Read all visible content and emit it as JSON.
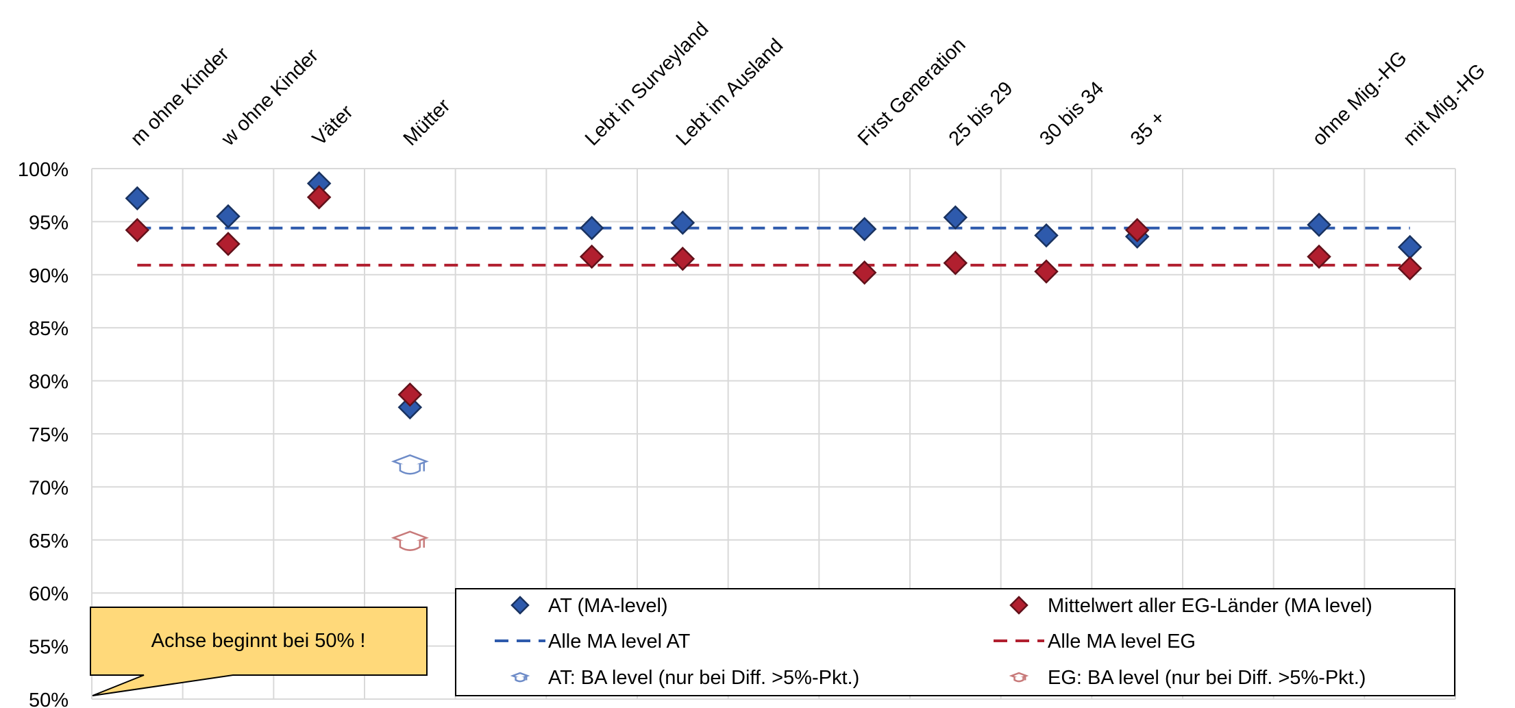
{
  "chart_data": {
    "type": "scatter",
    "categories": [
      "m ohne Kinder",
      "w ohne Kinder",
      "Väter",
      "Mütter",
      "",
      "Lebt in Surveyland",
      "Lebt im Ausland",
      "",
      "First Generation",
      "25 bis 29",
      "30 bis 34",
      "35 +",
      "",
      "ohne Mig.-HG",
      "mit Mig.-HG"
    ],
    "y_ticks": [
      "100%",
      "95%",
      "90%",
      "85%",
      "80%",
      "75%",
      "70%",
      "65%",
      "60%",
      "55%",
      "50%"
    ],
    "ylim": [
      0.5,
      1.0
    ],
    "grid": true,
    "series": [
      {
        "name": "AT (MA-level)",
        "kind": "marker",
        "color": "#2E5AAC",
        "values": [
          0.972,
          0.955,
          0.986,
          0.775,
          null,
          0.944,
          0.949,
          null,
          0.943,
          0.954,
          0.937,
          0.936,
          null,
          0.947,
          0.926
        ]
      },
      {
        "name": "Mittelwert aller EG-Länder (MA level)",
        "kind": "marker",
        "color": "#B11F2F",
        "values": [
          0.942,
          0.929,
          0.973,
          0.787,
          null,
          0.917,
          0.915,
          null,
          0.902,
          0.911,
          0.903,
          0.942,
          null,
          0.917,
          0.906
        ]
      },
      {
        "name": "Alle MA level AT",
        "kind": "reference-line",
        "color": "#2E5AAC",
        "value": 0.944
      },
      {
        "name": "Alle MA level EG",
        "kind": "reference-line",
        "color": "#B11F2F",
        "value": 0.909
      },
      {
        "name": "AT: BA level (nur bei Diff. >5%-Pkt.)",
        "kind": "graduation-cap",
        "color": "#6E8CC8",
        "icon": "graduation-cap-icon",
        "values": [
          null,
          null,
          null,
          0.724,
          null,
          null,
          null,
          null,
          null,
          null,
          null,
          null,
          null,
          null,
          null
        ]
      },
      {
        "name": "EG: BA level (nur bei Diff. >5%-Pkt.)",
        "kind": "graduation-cap",
        "color": "#C87A7A",
        "icon": "graduation-cap-icon",
        "values": [
          null,
          null,
          null,
          0.652,
          null,
          null,
          null,
          null,
          null,
          null,
          null,
          null,
          null,
          null,
          null
        ]
      }
    ],
    "legend_position": "bottom-right",
    "annotation": "Achse beginnt bei 50% !"
  }
}
